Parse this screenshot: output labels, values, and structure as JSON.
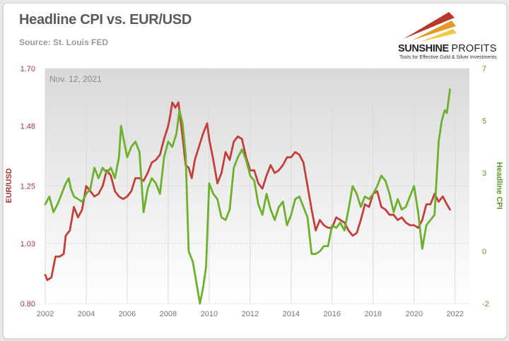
{
  "title": "Headline CPI vs. EUR/USD",
  "source": "Source: St. Louis FED",
  "logo": {
    "name_main": "SUNSHINE",
    "name_secondary": "PROFITS",
    "tagline": "Tools for Effective Gold & Silver Investments"
  },
  "colors": {
    "eurusd": "#c0403c",
    "cpi": "#6cb02e",
    "left_axis_text": "#a33a3a",
    "right_axis_text": "#5a9a2a",
    "tick_text": "#777777",
    "grid": "#d9d9d9"
  },
  "chart_data": {
    "type": "line",
    "annotation": "Nov. 12, 2021",
    "x_ticks": [
      "2002",
      "2004",
      "2006",
      "2008",
      "2010",
      "2012",
      "2014",
      "2016",
      "2018",
      "2020",
      "2022"
    ],
    "xlim": [
      2002,
      2022.7
    ],
    "left_axis": {
      "label": "EUR/USD",
      "ticks": [
        "0.80",
        "1.03",
        "1.25",
        "1.48",
        "1.70"
      ],
      "ylim": [
        0.8,
        1.7
      ]
    },
    "right_axis": {
      "label": "Headline CPI",
      "ticks": [
        "-2",
        "0",
        "3",
        "5",
        "7"
      ],
      "ylim": [
        -2,
        7
      ]
    },
    "grid": true,
    "series": [
      {
        "name": "EUR/USD",
        "axis": "left",
        "points": [
          [
            2002.0,
            0.91
          ],
          [
            2002.1,
            0.89
          ],
          [
            2002.3,
            0.9
          ],
          [
            2002.5,
            0.98
          ],
          [
            2002.7,
            0.98
          ],
          [
            2002.9,
            0.99
          ],
          [
            2003.0,
            1.06
          ],
          [
            2003.2,
            1.08
          ],
          [
            2003.4,
            1.17
          ],
          [
            2003.6,
            1.13
          ],
          [
            2003.8,
            1.16
          ],
          [
            2004.0,
            1.25
          ],
          [
            2004.2,
            1.23
          ],
          [
            2004.4,
            1.21
          ],
          [
            2004.6,
            1.22
          ],
          [
            2004.8,
            1.25
          ],
          [
            2005.0,
            1.31
          ],
          [
            2005.2,
            1.29
          ],
          [
            2005.4,
            1.23
          ],
          [
            2005.6,
            1.21
          ],
          [
            2005.8,
            1.2
          ],
          [
            2006.0,
            1.21
          ],
          [
            2006.2,
            1.23
          ],
          [
            2006.4,
            1.28
          ],
          [
            2006.6,
            1.28
          ],
          [
            2006.8,
            1.27
          ],
          [
            2007.0,
            1.3
          ],
          [
            2007.2,
            1.34
          ],
          [
            2007.4,
            1.35
          ],
          [
            2007.6,
            1.37
          ],
          [
            2007.8,
            1.43
          ],
          [
            2008.0,
            1.48
          ],
          [
            2008.1,
            1.52
          ],
          [
            2008.2,
            1.57
          ],
          [
            2008.35,
            1.55
          ],
          [
            2008.5,
            1.57
          ],
          [
            2008.7,
            1.44
          ],
          [
            2008.85,
            1.33
          ],
          [
            2009.0,
            1.32
          ],
          [
            2009.15,
            1.28
          ],
          [
            2009.3,
            1.35
          ],
          [
            2009.5,
            1.4
          ],
          [
            2009.7,
            1.45
          ],
          [
            2009.9,
            1.49
          ],
          [
            2010.0,
            1.43
          ],
          [
            2010.2,
            1.35
          ],
          [
            2010.4,
            1.26
          ],
          [
            2010.6,
            1.3
          ],
          [
            2010.8,
            1.38
          ],
          [
            2011.0,
            1.35
          ],
          [
            2011.2,
            1.42
          ],
          [
            2011.4,
            1.44
          ],
          [
            2011.6,
            1.43
          ],
          [
            2011.8,
            1.36
          ],
          [
            2012.0,
            1.31
          ],
          [
            2012.2,
            1.31
          ],
          [
            2012.4,
            1.26
          ],
          [
            2012.6,
            1.24
          ],
          [
            2012.8,
            1.29
          ],
          [
            2013.0,
            1.33
          ],
          [
            2013.2,
            1.3
          ],
          [
            2013.4,
            1.31
          ],
          [
            2013.6,
            1.33
          ],
          [
            2013.8,
            1.36
          ],
          [
            2014.0,
            1.36
          ],
          [
            2014.2,
            1.38
          ],
          [
            2014.4,
            1.37
          ],
          [
            2014.6,
            1.34
          ],
          [
            2014.8,
            1.25
          ],
          [
            2015.0,
            1.16
          ],
          [
            2015.2,
            1.08
          ],
          [
            2015.4,
            1.12
          ],
          [
            2015.6,
            1.1
          ],
          [
            2015.8,
            1.09
          ],
          [
            2016.0,
            1.09
          ],
          [
            2016.2,
            1.13
          ],
          [
            2016.4,
            1.12
          ],
          [
            2016.6,
            1.11
          ],
          [
            2016.8,
            1.08
          ],
          [
            2017.0,
            1.06
          ],
          [
            2017.2,
            1.07
          ],
          [
            2017.4,
            1.12
          ],
          [
            2017.6,
            1.18
          ],
          [
            2017.8,
            1.17
          ],
          [
            2018.0,
            1.22
          ],
          [
            2018.2,
            1.23
          ],
          [
            2018.4,
            1.17
          ],
          [
            2018.6,
            1.16
          ],
          [
            2018.8,
            1.14
          ],
          [
            2019.0,
            1.14
          ],
          [
            2019.2,
            1.12
          ],
          [
            2019.4,
            1.13
          ],
          [
            2019.6,
            1.11
          ],
          [
            2019.8,
            1.1
          ],
          [
            2020.0,
            1.1
          ],
          [
            2020.2,
            1.09
          ],
          [
            2020.4,
            1.12
          ],
          [
            2020.6,
            1.18
          ],
          [
            2020.8,
            1.18
          ],
          [
            2021.0,
            1.22
          ],
          [
            2021.2,
            1.19
          ],
          [
            2021.4,
            1.21
          ],
          [
            2021.6,
            1.18
          ],
          [
            2021.75,
            1.16
          ]
        ]
      },
      {
        "name": "Headline CPI",
        "axis": "right",
        "points": [
          [
            2002.0,
            1.8
          ],
          [
            2002.2,
            2.1
          ],
          [
            2002.4,
            1.5
          ],
          [
            2002.6,
            1.8
          ],
          [
            2002.8,
            2.2
          ],
          [
            2003.0,
            2.6
          ],
          [
            2003.15,
            2.8
          ],
          [
            2003.25,
            2.4
          ],
          [
            2003.4,
            2.1
          ],
          [
            2003.6,
            2.0
          ],
          [
            2003.8,
            1.9
          ],
          [
            2004.0,
            2.2
          ],
          [
            2004.2,
            2.4
          ],
          [
            2004.4,
            3.2
          ],
          [
            2004.6,
            2.8
          ],
          [
            2004.8,
            3.2
          ],
          [
            2005.0,
            3.0
          ],
          [
            2005.2,
            3.2
          ],
          [
            2005.4,
            2.8
          ],
          [
            2005.6,
            3.6
          ],
          [
            2005.7,
            4.8
          ],
          [
            2005.85,
            4.2
          ],
          [
            2006.0,
            3.6
          ],
          [
            2006.2,
            4.0
          ],
          [
            2006.4,
            4.2
          ],
          [
            2006.6,
            3.8
          ],
          [
            2006.8,
            1.5
          ],
          [
            2007.0,
            2.4
          ],
          [
            2007.2,
            2.8
          ],
          [
            2007.4,
            2.6
          ],
          [
            2007.6,
            2.2
          ],
          [
            2007.8,
            3.6
          ],
          [
            2008.0,
            4.2
          ],
          [
            2008.2,
            4.0
          ],
          [
            2008.4,
            4.5
          ],
          [
            2008.55,
            5.4
          ],
          [
            2008.7,
            4.9
          ],
          [
            2008.85,
            3.7
          ],
          [
            2009.0,
            0.0
          ],
          [
            2009.2,
            -0.4
          ],
          [
            2009.4,
            -1.3
          ],
          [
            2009.55,
            -2.0
          ],
          [
            2009.7,
            -1.4
          ],
          [
            2009.85,
            -0.6
          ],
          [
            2010.0,
            2.6
          ],
          [
            2010.2,
            2.2
          ],
          [
            2010.4,
            2.0
          ],
          [
            2010.6,
            1.3
          ],
          [
            2010.8,
            1.2
          ],
          [
            2011.0,
            1.6
          ],
          [
            2011.2,
            3.2
          ],
          [
            2011.4,
            3.6
          ],
          [
            2011.6,
            3.9
          ],
          [
            2011.8,
            3.5
          ],
          [
            2012.0,
            2.9
          ],
          [
            2012.2,
            2.7
          ],
          [
            2012.4,
            1.8
          ],
          [
            2012.6,
            1.4
          ],
          [
            2012.8,
            2.2
          ],
          [
            2013.0,
            1.6
          ],
          [
            2013.2,
            1.2
          ],
          [
            2013.4,
            1.7
          ],
          [
            2013.6,
            1.9
          ],
          [
            2013.8,
            1.0
          ],
          [
            2014.0,
            1.4
          ],
          [
            2014.2,
            2.0
          ],
          [
            2014.4,
            2.1
          ],
          [
            2014.6,
            1.7
          ],
          [
            2014.8,
            1.3
          ],
          [
            2015.0,
            -0.1
          ],
          [
            2015.2,
            -0.1
          ],
          [
            2015.4,
            0.0
          ],
          [
            2015.6,
            0.2
          ],
          [
            2015.8,
            0.2
          ],
          [
            2016.0,
            1.0
          ],
          [
            2016.2,
            0.9
          ],
          [
            2016.4,
            1.1
          ],
          [
            2016.6,
            0.8
          ],
          [
            2016.8,
            1.6
          ],
          [
            2017.0,
            2.5
          ],
          [
            2017.2,
            2.2
          ],
          [
            2017.4,
            1.7
          ],
          [
            2017.6,
            2.1
          ],
          [
            2017.8,
            2.0
          ],
          [
            2018.0,
            2.2
          ],
          [
            2018.2,
            2.5
          ],
          [
            2018.4,
            2.9
          ],
          [
            2018.6,
            2.7
          ],
          [
            2018.8,
            2.2
          ],
          [
            2019.0,
            1.5
          ],
          [
            2019.2,
            2.0
          ],
          [
            2019.4,
            1.6
          ],
          [
            2019.6,
            1.7
          ],
          [
            2019.8,
            2.1
          ],
          [
            2020.0,
            2.5
          ],
          [
            2020.2,
            1.5
          ],
          [
            2020.4,
            0.1
          ],
          [
            2020.6,
            1.0
          ],
          [
            2020.8,
            1.2
          ],
          [
            2021.0,
            1.4
          ],
          [
            2021.2,
            4.2
          ],
          [
            2021.35,
            5.0
          ],
          [
            2021.5,
            5.4
          ],
          [
            2021.6,
            5.3
          ],
          [
            2021.75,
            6.2
          ]
        ]
      }
    ]
  }
}
